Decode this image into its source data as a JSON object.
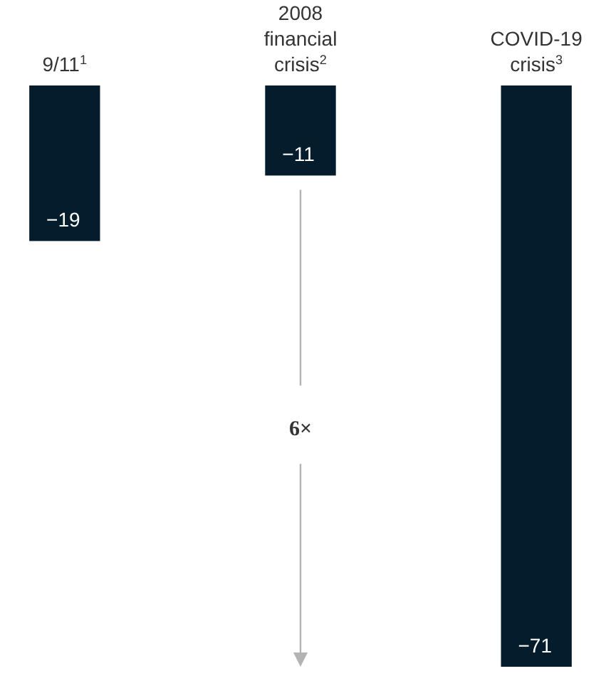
{
  "chart_data": {
    "type": "bar",
    "categories": [
      "9/11$^{1}$",
      "2008 financial crisis$^{2}$",
      "COVID-19 crisis$^{3}$"
    ],
    "values": [
      -19,
      -11,
      -71
    ],
    "color": "#051c2c",
    "data_labels": true,
    "annotations": [
      "6×"
    ]
  }
}
